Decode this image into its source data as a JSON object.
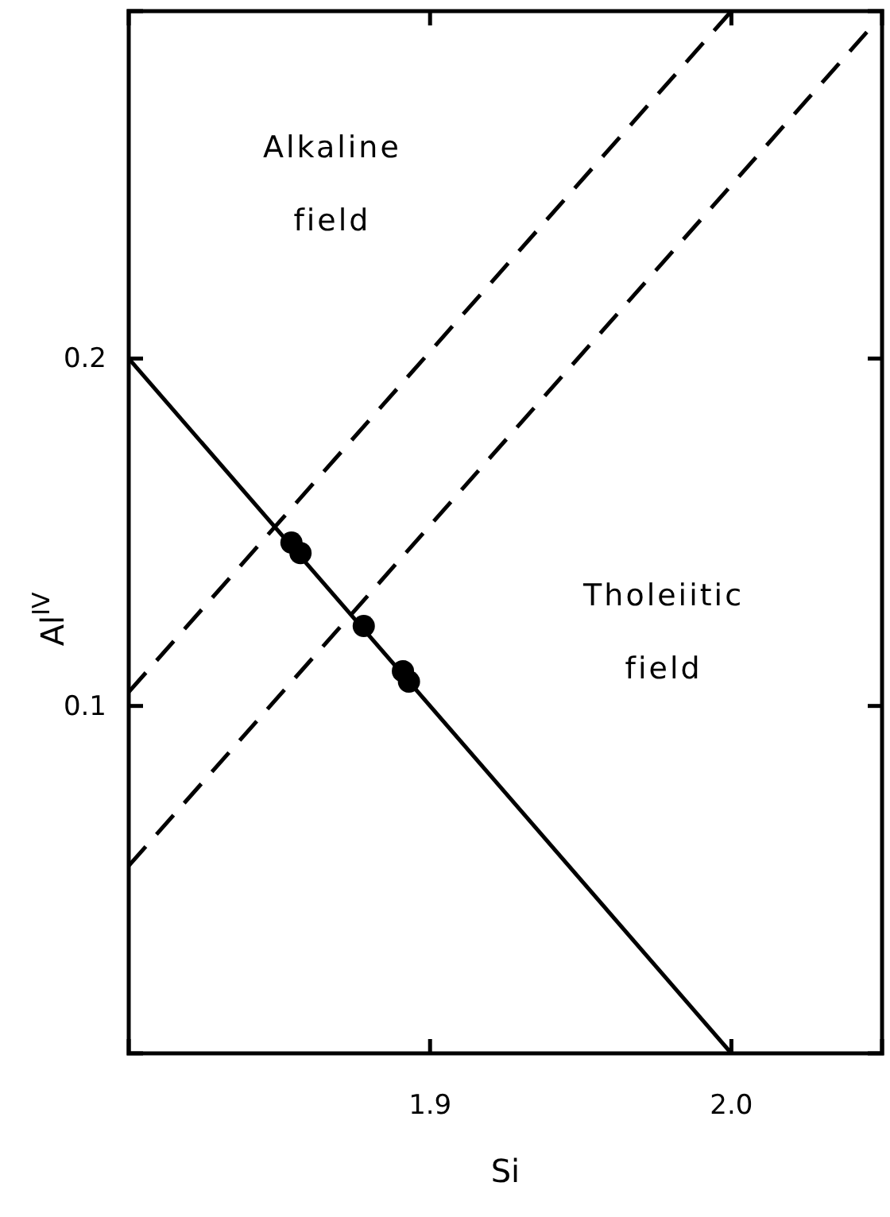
{
  "chart_data": {
    "type": "scatter",
    "xlabel": "Si",
    "ylabel": "Al$^{IV}$",
    "xlim": [
      1.8,
      2.05
    ],
    "ylim": [
      0,
      0.3
    ],
    "xticks": [
      1.9,
      {
        "value": 2.0,
        "label": "2.0"
      }
    ],
    "yticks": [
      0.1,
      0.2
    ],
    "grid": false,
    "annotations": [
      "Alkaline field",
      "Tholeiitic field"
    ],
    "series": [
      {
        "type": "line",
        "color": "#000000",
        "line_style": "solid",
        "marker": "none",
        "x": [
          1.8,
          2.0
        ],
        "values": [
          0.2,
          0
        ]
      },
      {
        "type": "line",
        "color": "#000000",
        "line_style": "dashed",
        "marker": "none",
        "x": [
          1.8,
          2.0
        ],
        "values": [
          0.104,
          0.3
        ]
      },
      {
        "type": "line",
        "color": "#000000",
        "line_style": "dashed",
        "marker": "none",
        "x": [
          1.8,
          2.045
        ],
        "values": [
          0.054,
          0.294
        ]
      },
      {
        "color": "#000000",
        "marker": "circle",
        "x": [
          1.854,
          1.857,
          1.878,
          1.891,
          1.893
        ],
        "values": [
          0.147,
          0.144,
          0.123,
          0.11,
          0.107
        ]
      }
    ]
  }
}
